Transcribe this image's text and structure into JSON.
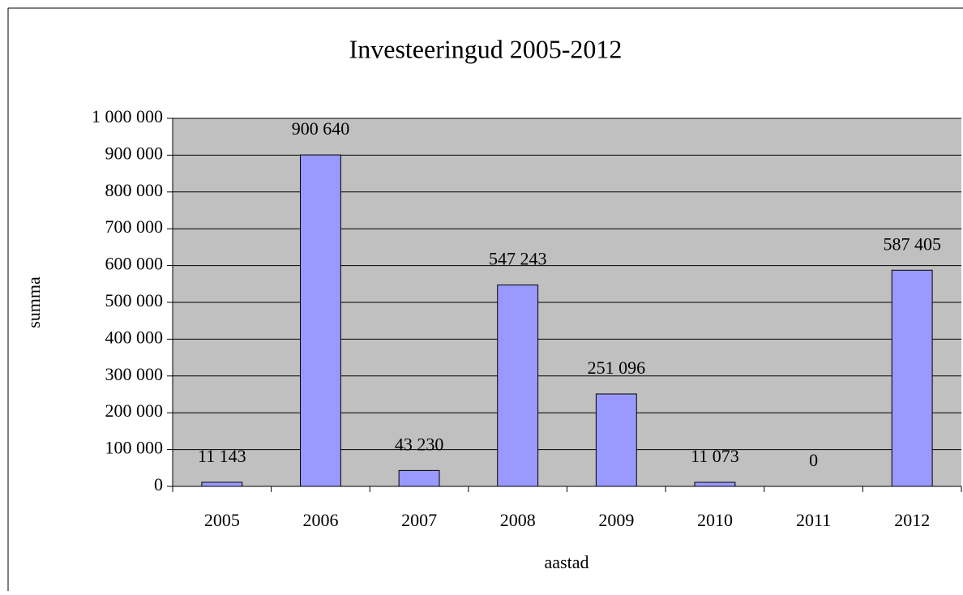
{
  "chart_data": {
    "type": "bar",
    "title": "Investeeringud 2005-2012",
    "x_label": "aastad",
    "y_label": "summa",
    "categories": [
      "2005",
      "2006",
      "2007",
      "2008",
      "2009",
      "2010",
      "2011",
      "2012"
    ],
    "values": [
      11143,
      900640,
      43230,
      547243,
      251096,
      11073,
      0,
      587405
    ],
    "value_labels": [
      "11 143",
      "900 640",
      "43 230",
      "547 243",
      "251 096",
      "11 073",
      "0",
      "587 405"
    ],
    "color": "#9999ff",
    "ylim": [
      0,
      1000000
    ],
    "yticks": [
      0,
      {
        "value": 100000,
        "label": "100 000"
      },
      {
        "value": 200000,
        "label": "200 000"
      },
      {
        "value": 300000,
        "label": "300 000"
      },
      {
        "value": 400000,
        "label": "400 000"
      },
      {
        "value": 500000,
        "label": "500 000"
      },
      {
        "value": 600000,
        "label": "600 000"
      },
      {
        "value": 700000,
        "label": "700 000"
      },
      {
        "value": 800000,
        "label": "800 000"
      },
      {
        "value": 900000,
        "label": "900 000"
      },
      {
        "value": 1000000,
        "label": "1 000 000"
      }
    ],
    "grid": true
  }
}
